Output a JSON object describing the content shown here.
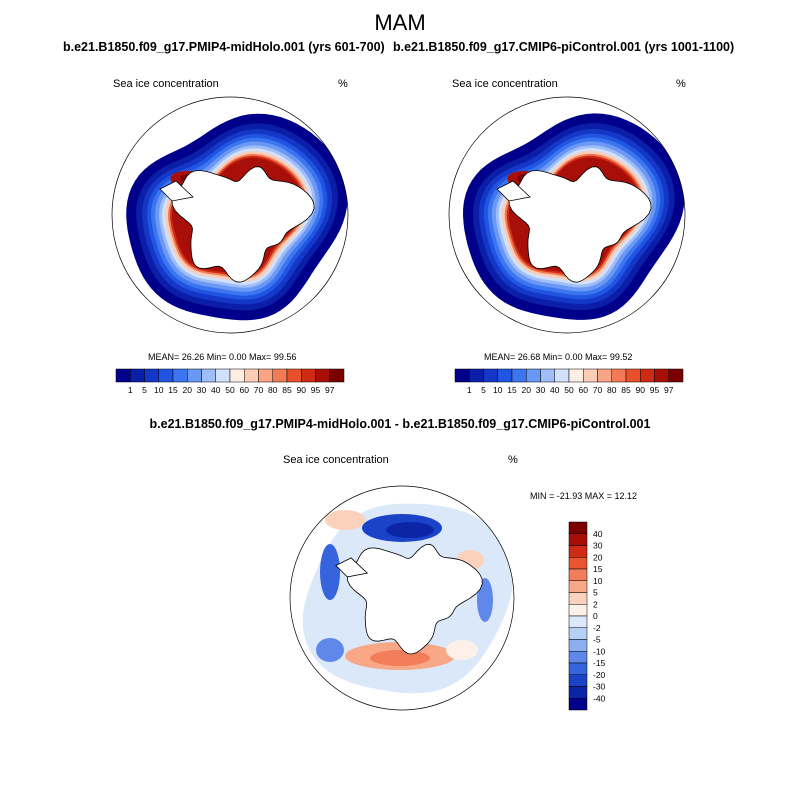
{
  "chart_data": {
    "type": "heatmap",
    "title": "MAM",
    "panels": [
      {
        "id": "midHolo",
        "title": "b.e21.B1850.f09_g17.PMIP4-midHolo.001 (yrs 601-700)",
        "variable_label": "Sea ice concentration",
        "units_label": "%",
        "stats_text": "MEAN=  26.26  Min=   0.00  Max=  99.56",
        "stats": {
          "mean": 26.26,
          "min": 0.0,
          "max": 99.56
        },
        "colorbar_labels": [
          "1",
          "5",
          "10",
          "15",
          "20",
          "30",
          "40",
          "50",
          "60",
          "70",
          "80",
          "85",
          "90",
          "95",
          "97"
        ]
      },
      {
        "id": "piControl",
        "title": "b.e21.B1850.f09_g17.CMIP6-piControl.001 (yrs 1001-1100)",
        "variable_label": "Sea ice concentration",
        "units_label": "%",
        "stats_text": "MEAN=  26.68  Min=   0.00  Max=  99.52",
        "stats": {
          "mean": 26.68,
          "min": 0.0,
          "max": 99.52
        },
        "colorbar_labels": [
          "1",
          "5",
          "10",
          "15",
          "20",
          "30",
          "40",
          "50",
          "60",
          "70",
          "80",
          "85",
          "90",
          "95",
          "97"
        ]
      },
      {
        "id": "difference",
        "title": "b.e21.B1850.f09_g17.PMIP4-midHolo.001 - b.e21.B1850.f09_g17.CMIP6-piControl.001",
        "variable_label": "Sea ice concentration",
        "units_label": "%",
        "stats_text": "MIN = -21.93 MAX =  12.12",
        "stats": {
          "min": -21.93,
          "max": 12.12
        },
        "colorbar_labels": [
          "40",
          "30",
          "20",
          "15",
          "10",
          "5",
          "2",
          "0",
          "-2",
          "-5",
          "-10",
          "-15",
          "-20",
          "-30",
          "-40"
        ]
      }
    ],
    "abs_colors": [
      "#00008b",
      "#0a1ea8",
      "#1537c7",
      "#1f55e0",
      "#3b75f0",
      "#6b98f5",
      "#9fbdf7",
      "#d1e1fb",
      "#fdeee5",
      "#fccdb6",
      "#f7a584",
      "#f27a55",
      "#e8512c",
      "#cf2a14",
      "#a80f08",
      "#7a0000"
    ],
    "diff_colors": [
      "#7a0000",
      "#a50f05",
      "#cf2a14",
      "#ea5530",
      "#f27d5a",
      "#f8a886",
      "#fcd1bb",
      "#fdf0e8",
      "#dbe8fa",
      "#b6cff7",
      "#8daff2",
      "#5f88ea",
      "#3564dd",
      "#1a43c8",
      "#0c25a6",
      "#00008b"
    ]
  }
}
